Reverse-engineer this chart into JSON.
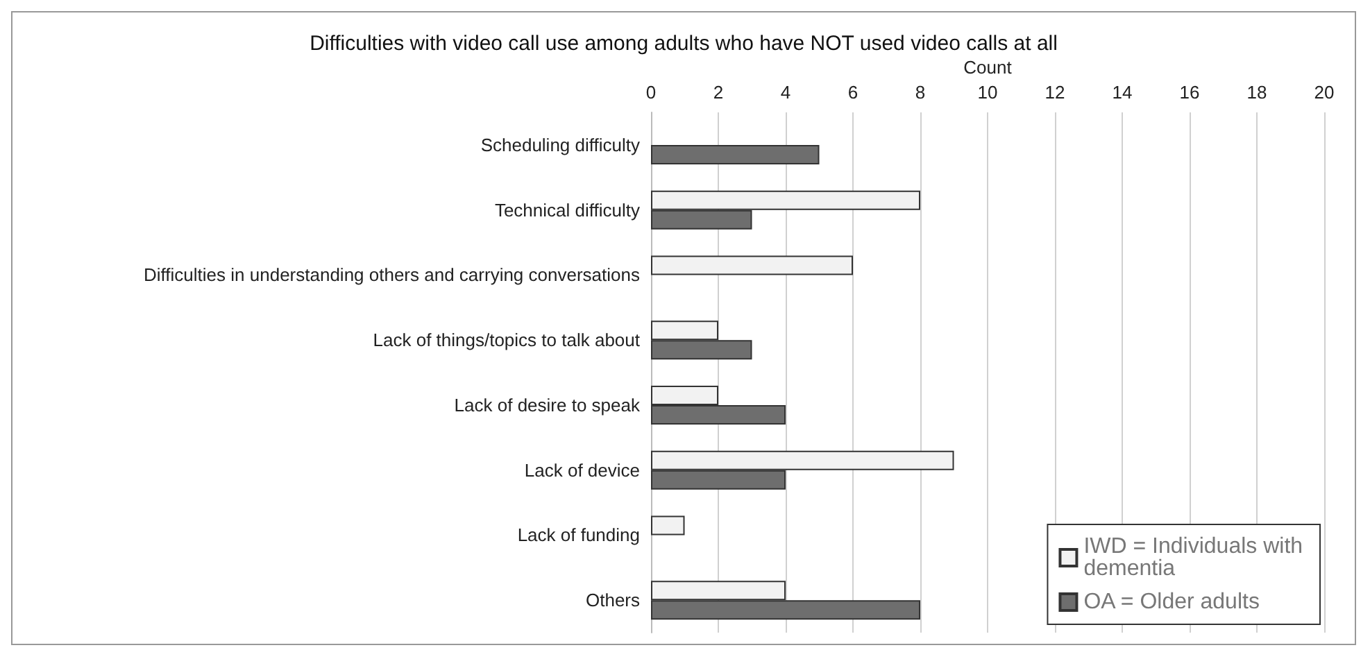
{
  "chart_data": {
    "type": "bar",
    "orientation": "horizontal",
    "title": "Difficulties with video call use among adults who have NOT used video calls at all",
    "xlabel": "Count",
    "categories": [
      "Scheduling difficulty",
      "Technical difficulty",
      "Difficulties in understanding others and carrying conversations",
      "Lack of things/topics to talk about",
      "Lack of desire to speak",
      "Lack of device",
      "Lack of funding",
      "Others"
    ],
    "series": [
      {
        "name": "IWD = Individuals with dementia",
        "color": "#f2f2f2",
        "values": [
          null,
          8,
          6,
          2,
          2,
          9,
          1,
          4
        ]
      },
      {
        "name": "OA = Older adults",
        "color": "#6e6e6e",
        "values": [
          5,
          3,
          null,
          3,
          4,
          4,
          null,
          8
        ]
      }
    ],
    "xlim": [
      0,
      20
    ],
    "xticks": [
      0,
      2,
      4,
      6,
      8,
      10,
      12,
      14,
      16,
      18,
      20
    ],
    "grid": "x",
    "legend": "bottom right"
  }
}
